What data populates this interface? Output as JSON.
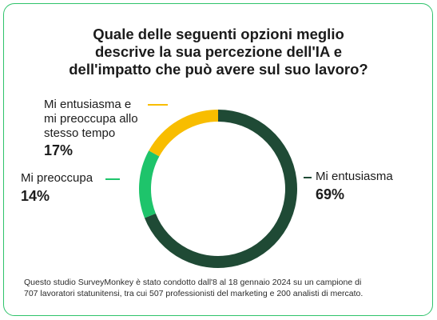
{
  "title_lines": [
    "Quale delle seguenti opzioni meglio",
    "descrive la sua percezione dell'IA e",
    "dell'impatto che può avere sul suo lavoro?"
  ],
  "footer_lines": [
    "Questo studio SurveyMonkey è stato condotto dall'8 al 18 gennaio 2024 su un campione di",
    "707 lavoratori statunitensi, tra cui 507 professionisti del marketing e 200 analisti di mercato."
  ],
  "colors": {
    "border": "#2fc36b",
    "enthusiasm": "#1f4a35",
    "worry": "#1ec46b",
    "both": "#f8bd00"
  },
  "chart_data": {
    "type": "pie",
    "variant": "donut",
    "title": "Quale delle seguenti opzioni meglio descrive la sua percezione dell'IA e dell'impatto che può avere sul suo lavoro?",
    "slices": [
      {
        "label": "Mi entusiasma",
        "value": 69,
        "value_label": "69%",
        "color": "#1f4a35"
      },
      {
        "label": "Mi preoccupa",
        "value": 14,
        "value_label": "14%",
        "color": "#1ec46b"
      },
      {
        "label": "Mi entusiasma e mi preoccupa allo stesso tempo",
        "label_lines": [
          "Mi entusiasma e",
          "mi preoccupa allo",
          "stesso tempo"
        ],
        "value": 17,
        "value_label": "17%",
        "color": "#f8bd00"
      }
    ]
  }
}
